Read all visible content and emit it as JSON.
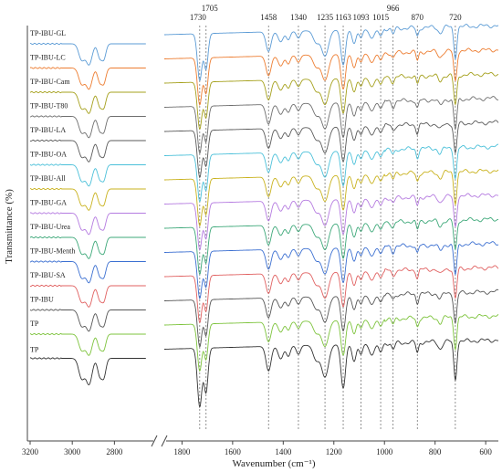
{
  "chart_data": {
    "type": "line",
    "xlabel": "Wavenumber (cm⁻¹)",
    "ylabel": "Transmittance (%)",
    "x_reversed": true,
    "axis_break": true,
    "xlim_left_panel": [
      3200,
      2650
    ],
    "xlim_right_panel": [
      1870,
      550
    ],
    "x_ticks": [
      3200,
      3000,
      2800,
      1800,
      1600,
      1400,
      1200,
      1000,
      800,
      600
    ],
    "annotated_peaks": [
      {
        "x": 1730,
        "label": "1730"
      },
      {
        "x": 1705,
        "label": "1705"
      },
      {
        "x": 1458,
        "label": "1458"
      },
      {
        "x": 1340,
        "label": "1340"
      },
      {
        "x": 1235,
        "label": "1235"
      },
      {
        "x": 1163,
        "label": "1163"
      },
      {
        "x": 1093,
        "label": "1093"
      },
      {
        "x": 1015,
        "label": "1015"
      },
      {
        "x": 966,
        "label": "966"
      },
      {
        "x": 870,
        "label": "870"
      },
      {
        "x": 720,
        "label": "720"
      }
    ],
    "series": [
      {
        "name": "TP-IBU-GL",
        "color": "#5b9bd5"
      },
      {
        "name": "TP-IBU-LC",
        "color": "#ed7d31"
      },
      {
        "name": "TP-IBU-Cam",
        "color": "#a5a01c"
      },
      {
        "name": "TP-IBU-T80",
        "color": "#6e6e6e"
      },
      {
        "name": "TP-IBU-LA",
        "color": "#5a5a5a"
      },
      {
        "name": "TP-IBU-OA",
        "color": "#4bc0d9"
      },
      {
        "name": "TP-IBU-All",
        "color": "#c9b21e"
      },
      {
        "name": "TP-IBU-GA",
        "color": "#b57be0"
      },
      {
        "name": "TP-IBU-Urea",
        "color": "#3da879"
      },
      {
        "name": "TP-IBU-Menth",
        "color": "#3b6fd1"
      },
      {
        "name": "TP-IBU-SA",
        "color": "#e06060"
      },
      {
        "name": "TP-IBU",
        "color": "#555555"
      },
      {
        "name": "TP",
        "color": "#7dc33c"
      },
      {
        "name": "TP",
        "color": "#333333"
      }
    ],
    "label_colors": {
      "default": "#222222"
    }
  }
}
